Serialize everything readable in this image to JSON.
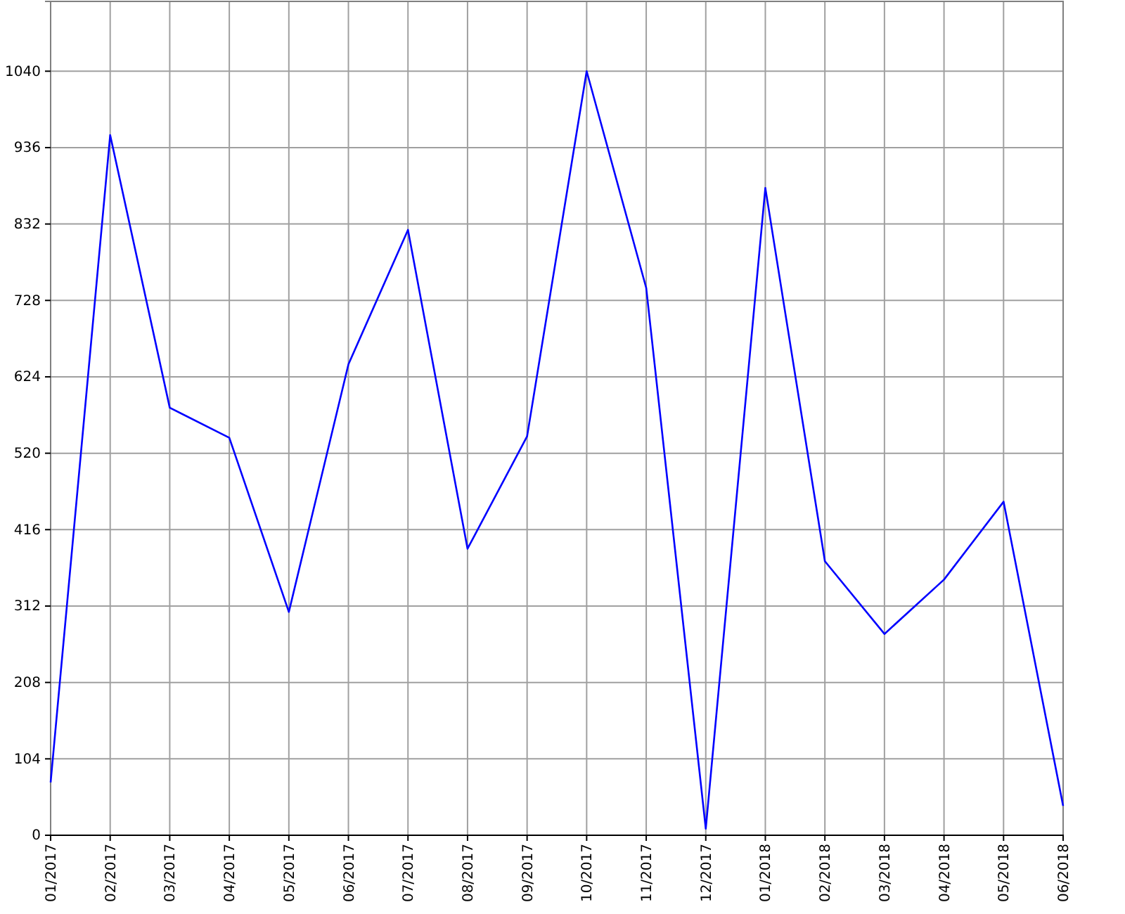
{
  "chart_data": {
    "type": "line",
    "categories": [
      "01/2017",
      "02/2017",
      "03/2017",
      "04/2017",
      "05/2017",
      "06/2017",
      "07/2017",
      "08/2017",
      "09/2017",
      "10/2017",
      "11/2017",
      "12/2017",
      "01/2018",
      "02/2018",
      "03/2018",
      "04/2018",
      "05/2018",
      "06/2018"
    ],
    "series": [
      {
        "color": "#0000ff",
        "values": [
          72,
          953,
          582,
          541,
          304,
          641,
          824,
          390,
          543,
          1040,
          745,
          9,
          881,
          373,
          274,
          348,
          454,
          40
        ]
      }
    ],
    "ylim": [
      0,
      1135
    ],
    "yticks": [
      0,
      104,
      208,
      312,
      416,
      520,
      624,
      728,
      832,
      936,
      1040
    ],
    "grid": true,
    "marker": "none",
    "line_style": "solid"
  }
}
